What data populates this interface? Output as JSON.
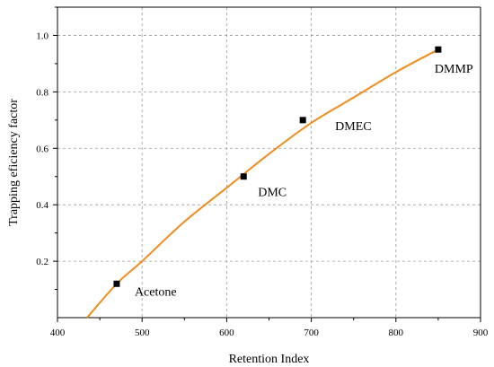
{
  "chart_data": {
    "type": "scatter",
    "xlabel": "Retention Index",
    "ylabel": "Trapping eficiency factor",
    "xlim": [
      400,
      900
    ],
    "ylim": [
      0.0,
      1.1
    ],
    "xticks": [
      400,
      500,
      600,
      700,
      800,
      900
    ],
    "yticks": [
      0.2,
      0.4,
      0.6,
      0.8,
      1.0
    ],
    "xtick_labels": [
      "400",
      "500",
      "600",
      "700",
      "800",
      "900"
    ],
    "ytick_labels": [
      "0.2",
      "0.4",
      "0.6",
      "0.8",
      "1.0"
    ],
    "grid": true,
    "points": [
      {
        "label": "Acetone",
        "x": 470,
        "y": 0.12
      },
      {
        "label": "DMC",
        "x": 620,
        "y": 0.5
      },
      {
        "label": "DMEC",
        "x": 690,
        "y": 0.7
      },
      {
        "label": "DMMP",
        "x": 850,
        "y": 0.95
      }
    ],
    "fit_curve": {
      "x": [
        435,
        470,
        500,
        550,
        600,
        650,
        700,
        750,
        800,
        850
      ],
      "y": [
        0.0,
        0.12,
        0.2,
        0.34,
        0.46,
        0.58,
        0.69,
        0.78,
        0.87,
        0.95
      ],
      "color": "#f08c1e"
    },
    "marker_color": "#000000"
  }
}
